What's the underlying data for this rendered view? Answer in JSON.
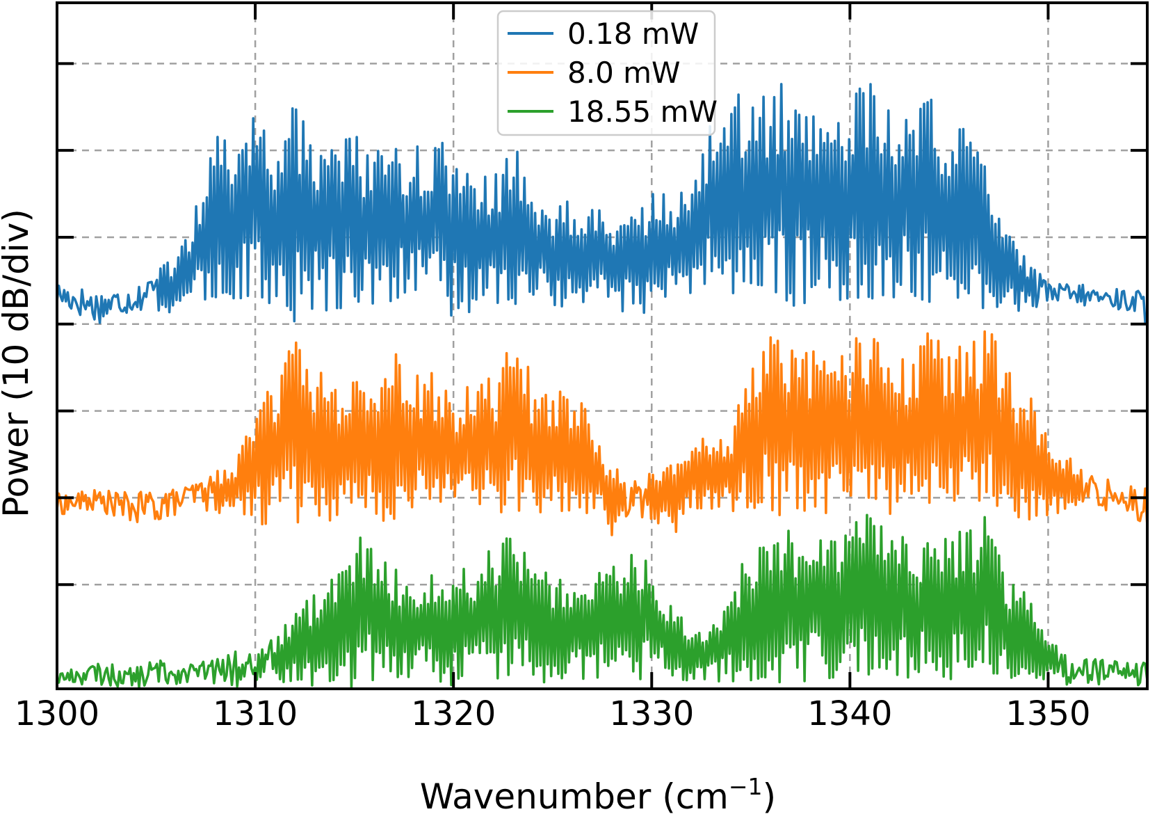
{
  "chart_data": {
    "type": "line",
    "xlabel": "Wavenumber (cm",
    "xlabel_sup": "−1",
    "xlabel_close": ")",
    "ylabel": "Power (10 dB/div)",
    "xlim": [
      1300,
      1355
    ],
    "ylim": [
      -7.2,
      0.7
    ],
    "x_ticks": [
      1300,
      1310,
      1320,
      1330,
      1340,
      1350
    ],
    "x_tick_labels": [
      "1300",
      "1310",
      "1320",
      "1330",
      "1340",
      "1350"
    ],
    "y_ticks": [
      -6.0,
      -5.0,
      -4.0,
      -3.0,
      -2.0,
      -1.0,
      0.0
    ],
    "grid": true,
    "legend_position": "top-center",
    "series": [
      {
        "name": "0.18 mW",
        "color": "#1f77b4",
        "x": [
          1300,
          1302,
          1304,
          1305,
          1306,
          1307,
          1308,
          1309,
          1310,
          1311,
          1312,
          1313,
          1314,
          1315,
          1316,
          1317,
          1318,
          1319,
          1320,
          1321,
          1322,
          1323,
          1324,
          1325,
          1326,
          1327,
          1328,
          1329,
          1330,
          1331,
          1332,
          1333,
          1334,
          1335,
          1336,
          1337,
          1338,
          1339,
          1340,
          1341,
          1342,
          1343,
          1344,
          1345,
          1346,
          1347,
          1348,
          1349,
          1350,
          1352,
          1354,
          1355
        ],
        "upper": [
          -2.5,
          -2.6,
          -2.55,
          -2.35,
          -2.2,
          -1.65,
          -0.8,
          -0.65,
          -0.5,
          -0.8,
          -0.45,
          -0.75,
          -0.9,
          -0.8,
          -0.95,
          -0.9,
          -0.85,
          -0.95,
          -0.8,
          -1.05,
          -1.3,
          -0.9,
          -1.4,
          -1.55,
          -1.55,
          -1.65,
          -1.75,
          -1.65,
          -1.5,
          -1.45,
          -1.4,
          -0.55,
          -0.35,
          -0.3,
          -0.25,
          -0.2,
          -0.25,
          -0.5,
          -0.35,
          -0.2,
          -0.5,
          -0.25,
          -0.35,
          -0.75,
          -0.7,
          -1.2,
          -1.9,
          -2.3,
          -2.5,
          -2.55,
          -2.6,
          -2.6
        ],
        "lower": [
          -2.8,
          -3.0,
          -2.85,
          -2.85,
          -2.9,
          -2.8,
          -2.75,
          -2.75,
          -2.8,
          -2.85,
          -3.0,
          -2.8,
          -2.9,
          -2.75,
          -2.9,
          -2.7,
          -2.8,
          -2.75,
          -3.05,
          -2.85,
          -2.75,
          -2.8,
          -2.7,
          -2.9,
          -2.8,
          -2.75,
          -2.8,
          -2.9,
          -2.9,
          -2.8,
          -2.7,
          -2.6,
          -2.75,
          -2.7,
          -2.75,
          -2.8,
          -2.8,
          -2.7,
          -2.8,
          -2.8,
          -2.75,
          -2.85,
          -2.8,
          -2.9,
          -2.9,
          -2.85,
          -2.85,
          -2.85,
          -2.8,
          -2.8,
          -2.85,
          -3.0
        ]
      },
      {
        "name": "8.0 mW",
        "color": "#ff7f0e",
        "x": [
          1300,
          1302,
          1304,
          1305,
          1306,
          1307,
          1308,
          1309,
          1310,
          1311,
          1312,
          1313,
          1314,
          1315,
          1316,
          1317,
          1318,
          1319,
          1320,
          1321,
          1322,
          1323,
          1324,
          1325,
          1326,
          1327,
          1328,
          1329,
          1330,
          1331,
          1332,
          1333,
          1334,
          1335,
          1336,
          1337,
          1338,
          1339,
          1340,
          1341,
          1342,
          1343,
          1344,
          1345,
          1346,
          1347,
          1348,
          1349,
          1350,
          1352,
          1354,
          1355
        ],
        "upper": [
          -4.95,
          -4.9,
          -4.95,
          -4.85,
          -4.9,
          -4.8,
          -4.7,
          -4.6,
          -4.0,
          -3.5,
          -3.1,
          -3.45,
          -3.75,
          -3.5,
          -3.55,
          -3.25,
          -3.6,
          -3.55,
          -3.8,
          -3.65,
          -3.6,
          -3.15,
          -3.6,
          -3.65,
          -3.75,
          -4.0,
          -4.6,
          -4.8,
          -4.7,
          -4.5,
          -4.35,
          -4.3,
          -4.2,
          -3.5,
          -3.1,
          -3.3,
          -3.3,
          -3.4,
          -3.2,
          -2.95,
          -3.3,
          -3.4,
          -3.0,
          -3.3,
          -3.15,
          -2.95,
          -3.5,
          -3.7,
          -4.25,
          -4.7,
          -4.85,
          -4.8
        ],
        "lower": [
          -5.2,
          -5.15,
          -5.3,
          -5.3,
          -5.2,
          -5.1,
          -5.2,
          -5.15,
          -5.3,
          -5.4,
          -5.3,
          -5.2,
          -5.3,
          -5.2,
          -5.3,
          -5.25,
          -5.2,
          -5.2,
          -5.2,
          -5.15,
          -5.25,
          -5.2,
          -5.3,
          -5.2,
          -5.2,
          -5.2,
          -5.45,
          -5.2,
          -5.25,
          -5.45,
          -5.2,
          -5.15,
          -5.2,
          -5.1,
          -5.2,
          -5.2,
          -5.15,
          -5.2,
          -5.2,
          -5.1,
          -5.2,
          -5.15,
          -5.3,
          -5.2,
          -5.15,
          -5.1,
          -5.3,
          -5.3,
          -5.2,
          -5.15,
          -5.15,
          -5.35
        ]
      },
      {
        "name": "18.55 mW",
        "color": "#2ca02c",
        "x": [
          1300,
          1302,
          1304,
          1305,
          1306,
          1307,
          1308,
          1309,
          1310,
          1311,
          1312,
          1313,
          1314,
          1315,
          1316,
          1317,
          1318,
          1319,
          1320,
          1321,
          1322,
          1323,
          1324,
          1325,
          1326,
          1327,
          1328,
          1329,
          1330,
          1331,
          1332,
          1333,
          1334,
          1335,
          1336,
          1337,
          1338,
          1339,
          1340,
          1341,
          1342,
          1343,
          1344,
          1345,
          1346,
          1347,
          1348,
          1349,
          1350,
          1352,
          1354,
          1355
        ],
        "upper": [
          -7.0,
          -6.9,
          -6.95,
          -6.85,
          -6.9,
          -6.9,
          -6.85,
          -6.75,
          -6.8,
          -6.6,
          -6.3,
          -6.1,
          -5.85,
          -5.3,
          -5.45,
          -5.8,
          -5.9,
          -5.8,
          -5.85,
          -5.75,
          -5.5,
          -5.45,
          -5.75,
          -5.85,
          -5.95,
          -5.95,
          -5.7,
          -5.5,
          -5.8,
          -6.2,
          -6.5,
          -6.5,
          -6.0,
          -5.55,
          -5.5,
          -5.35,
          -5.3,
          -5.5,
          -5.3,
          -5.1,
          -5.25,
          -5.3,
          -5.5,
          -5.4,
          -5.3,
          -5.1,
          -5.85,
          -6.1,
          -6.6,
          -6.8,
          -6.9,
          -6.9
        ],
        "lower": [
          -7.15,
          -7.15,
          -7.2,
          -7.15,
          -7.15,
          -7.1,
          -7.15,
          -7.2,
          -7.1,
          -7.15,
          -7.1,
          -7.2,
          -7.15,
          -7.2,
          -7.1,
          -7.1,
          -7.15,
          -7.1,
          -7.2,
          -7.1,
          -7.1,
          -7.1,
          -7.1,
          -7.15,
          -7.05,
          -7.15,
          -7.1,
          -7.15,
          -7.05,
          -7.1,
          -7.15,
          -7.1,
          -7.15,
          -7.1,
          -7.15,
          -7.15,
          -7.1,
          -7.2,
          -7.1,
          -7.15,
          -7.1,
          -7.1,
          -7.05,
          -7.1,
          -7.15,
          -7.1,
          -7.15,
          -7.1,
          -7.15,
          -7.15,
          -7.15,
          -7.2
        ]
      }
    ]
  }
}
